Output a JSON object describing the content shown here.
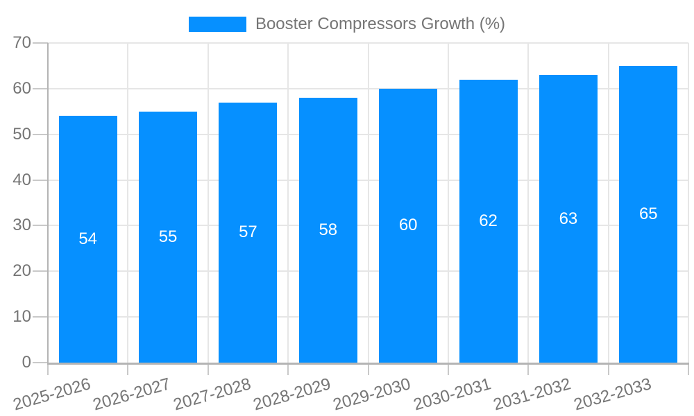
{
  "legend": {
    "label": "Booster Compressors Growth (%)"
  },
  "chart_data": {
    "type": "bar",
    "title": "",
    "xlabel": "",
    "ylabel": "",
    "series_name": "Booster Compressors Growth (%)",
    "categories": [
      "2025-2026",
      "2026-2027",
      "2027-2028",
      "2028-2029",
      "2029-2030",
      "2030-2031",
      "2031-2032",
      "2032-2033"
    ],
    "values": [
      54,
      55,
      57,
      58,
      60,
      62,
      63,
      65
    ],
    "ylim": [
      0,
      70
    ],
    "ytick_step": 10,
    "yticks": [
      0,
      10,
      20,
      30,
      40,
      50,
      60,
      70
    ],
    "grid": true,
    "legend_position": "top",
    "value_labels_position": "inside-center",
    "x_label_rotation_deg": -16,
    "colors": {
      "bar": "#0690ff",
      "value_label": "#ffffff",
      "axis_text": "#757575",
      "grid_line": "#e6e6e6",
      "axis_line": "#b4b4b4",
      "tick_line": "#c9c9c9",
      "background": "#ffffff"
    }
  }
}
